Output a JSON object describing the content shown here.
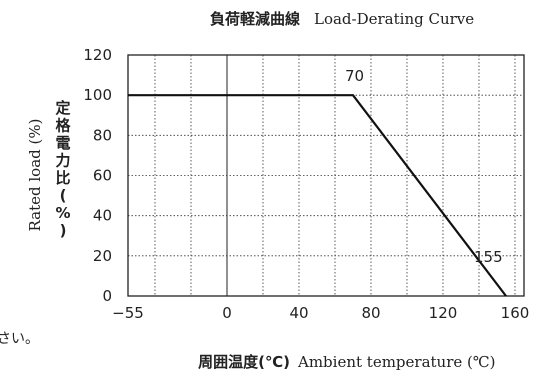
{
  "chart_data": {
    "type": "line",
    "title_ja": "負荷軽減曲線",
    "title_en": "Load-Derating Curve",
    "xlabel_ja": "周囲温度(℃)",
    "xlabel_en": "Ambient temperature (℃)",
    "ylabel_en": "Rated load (%)",
    "ylabel_ja": [
      "定",
      "格",
      "電",
      "力",
      "比",
      "(",
      "%",
      ")"
    ],
    "x_ticks": [
      "−55",
      "0",
      "40",
      "80",
      "120",
      "160"
    ],
    "y_ticks": [
      "0",
      "20",
      "40",
      "60",
      "80",
      "100",
      "120"
    ],
    "xlim": [
      -55,
      165
    ],
    "ylim": [
      0,
      120
    ],
    "grid": true,
    "series": [
      {
        "x": [
          -55,
          70,
          155
        ],
        "y": [
          100,
          100,
          0
        ]
      }
    ],
    "annotations": [
      {
        "text": "70",
        "x": 70,
        "y": 100
      },
      {
        "text": "155",
        "x": 155,
        "y": 0
      }
    ]
  },
  "side_fragment": "さい。"
}
